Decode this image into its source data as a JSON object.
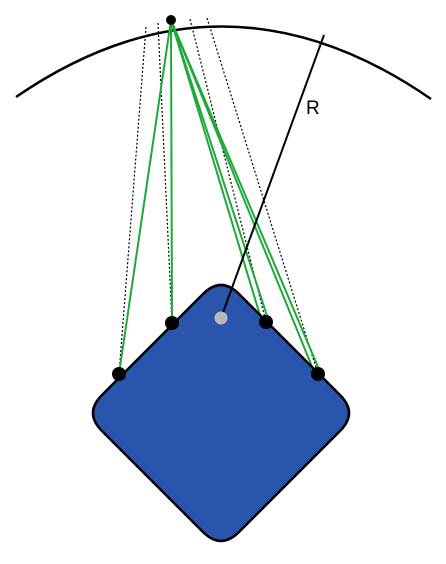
{
  "diagram": {
    "radius_label": "R",
    "colors": {
      "plate_fill": "#2a55ad",
      "outline": "#000000",
      "cable": "#1fa83a",
      "projection": "#000000",
      "center_marker": "#b8b8b8",
      "background": "#ffffff"
    },
    "anchor_point": "apex-point",
    "attachment_points": [
      "left-corner",
      "top-left",
      "top-right",
      "right-corner"
    ],
    "center_marker": "plate-center"
  }
}
